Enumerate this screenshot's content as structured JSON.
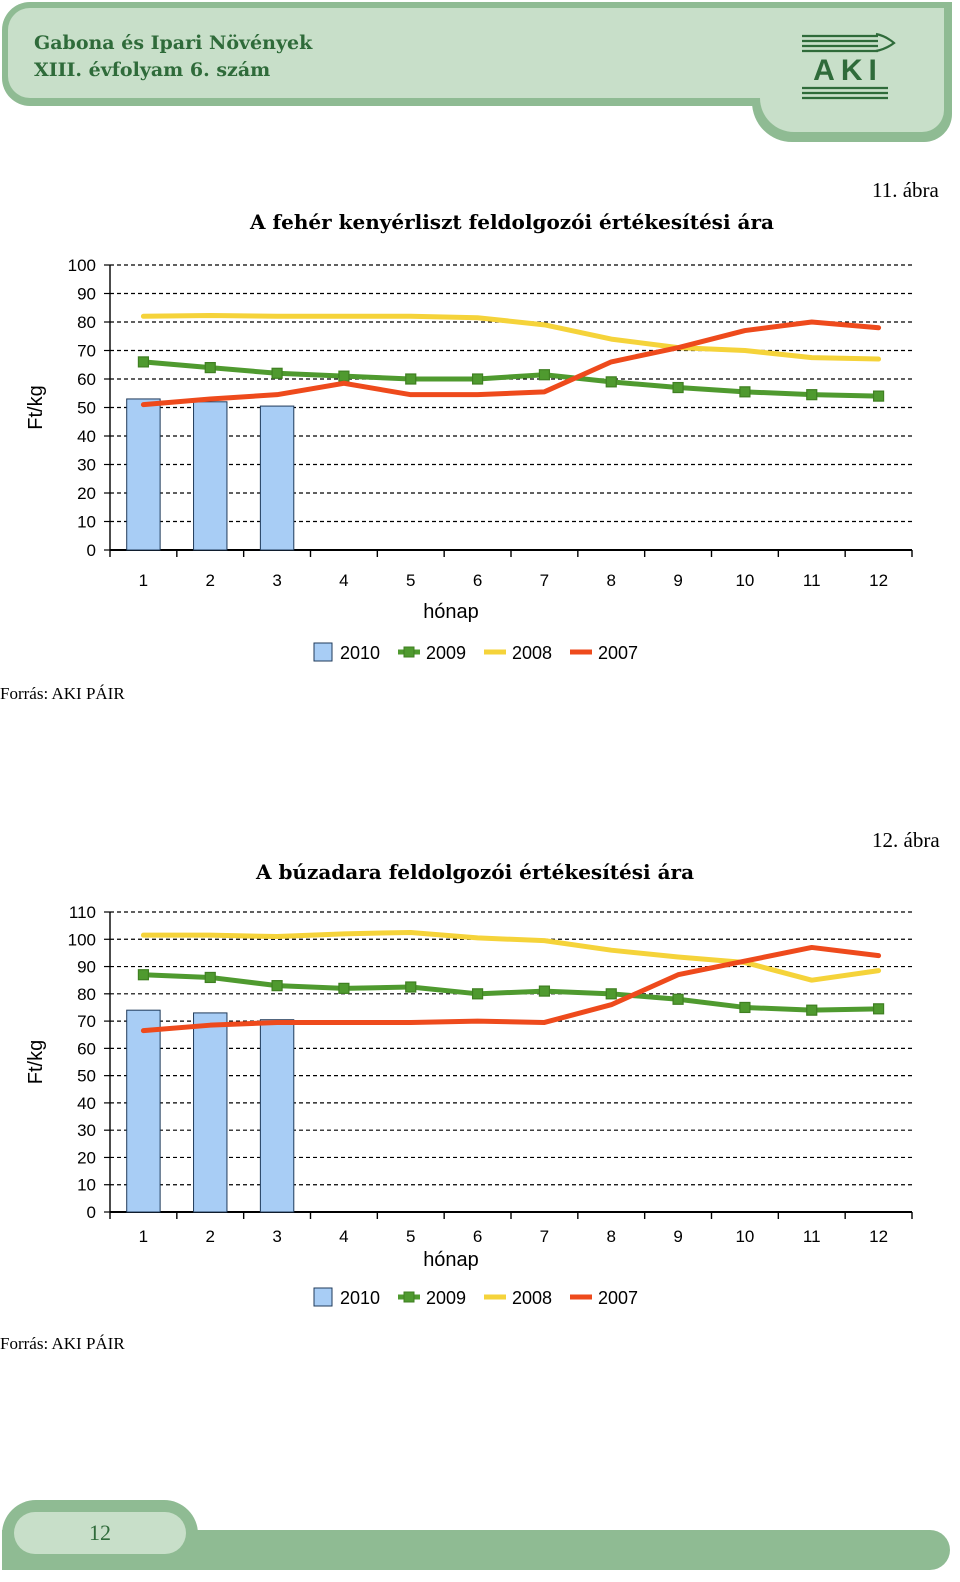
{
  "header": {
    "journal_line1": "Gabona és Ipari Növények",
    "journal_line2": "XIII. évfolyam 6. szám",
    "logo_text": "AKI"
  },
  "footer": {
    "page_number": "12"
  },
  "colors": {
    "bar_2010": "#a8cdf5",
    "line_2009": "#4f9a2f",
    "marker_2009": "#3f7f22",
    "line_2008": "#f5d33a",
    "line_2007": "#ee4a1c",
    "accent_green": "#2f6b3a"
  },
  "figures": [
    {
      "label": "11. ábra",
      "source": "Forrás: AKI PÁIR"
    },
    {
      "label": "12. ábra",
      "source": "Forrás: AKI PÁIR"
    }
  ],
  "chart_data": [
    {
      "type": "bar+line",
      "title": "A fehér kenyérliszt feldolgozói értékesítési ára",
      "ylabel": "Ft/kg",
      "xlabel": "hónap",
      "categories": [
        "1",
        "2",
        "3",
        "4",
        "5",
        "6",
        "7",
        "8",
        "9",
        "10",
        "11",
        "12"
      ],
      "ylim": [
        0,
        100
      ],
      "yticks": [
        0,
        10,
        20,
        30,
        40,
        50,
        60,
        70,
        80,
        90,
        100
      ],
      "grid": "dashed-horizontal",
      "legend": "bottom",
      "series": [
        {
          "name": "2010",
          "kind": "bar",
          "values": [
            53,
            52,
            50.5,
            null,
            null,
            null,
            null,
            null,
            null,
            null,
            null,
            null
          ]
        },
        {
          "name": "2009",
          "kind": "line-marker",
          "values": [
            66,
            64,
            62,
            61,
            60,
            60,
            61.5,
            59,
            57,
            55.5,
            54.5,
            54
          ]
        },
        {
          "name": "2008",
          "kind": "line",
          "values": [
            82,
            82.3,
            82,
            82,
            82,
            81.5,
            79,
            74,
            71,
            70,
            67.5,
            67
          ]
        },
        {
          "name": "2007",
          "kind": "line",
          "values": [
            51,
            53,
            54.5,
            58.5,
            54.5,
            54.5,
            55.5,
            66,
            71,
            77,
            80,
            78
          ]
        }
      ]
    },
    {
      "type": "bar+line",
      "title": "A búzadara feldolgozói értékesítési ára",
      "ylabel": "Ft/kg",
      "xlabel": "hónap",
      "categories": [
        "1",
        "2",
        "3",
        "4",
        "5",
        "6",
        "7",
        "8",
        "9",
        "10",
        "11",
        "12"
      ],
      "ylim": [
        0,
        110
      ],
      "yticks": [
        0,
        10,
        20,
        30,
        40,
        50,
        60,
        70,
        80,
        90,
        100,
        110
      ],
      "grid": "dashed-horizontal",
      "legend": "bottom",
      "series": [
        {
          "name": "2010",
          "kind": "bar",
          "values": [
            74,
            73,
            70.5,
            null,
            null,
            null,
            null,
            null,
            null,
            null,
            null,
            null
          ]
        },
        {
          "name": "2009",
          "kind": "line-marker",
          "values": [
            87,
            86,
            83,
            82,
            82.5,
            80,
            81,
            80,
            78,
            75,
            74,
            74.5
          ]
        },
        {
          "name": "2008",
          "kind": "line",
          "values": [
            101.5,
            101.5,
            101,
            102,
            102.5,
            100.5,
            99.5,
            96,
            93.5,
            91.5,
            85,
            88.5
          ]
        },
        {
          "name": "2007",
          "kind": "line",
          "values": [
            66.5,
            68.5,
            69.5,
            69.5,
            69.5,
            70,
            69.5,
            76,
            87,
            92,
            97,
            94
          ]
        }
      ]
    }
  ]
}
